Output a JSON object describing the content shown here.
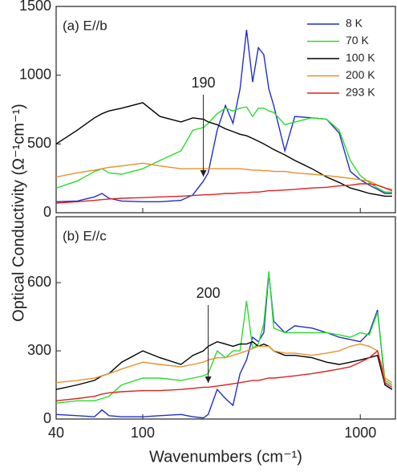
{
  "chart_data": [
    {
      "type": "line",
      "panel_label": "(a) E//b",
      "ylabel": "Optical Conductivity (Ω⁻¹cm⁻¹)",
      "log_x": true,
      "xlim": [
        40,
        1450
      ],
      "xticks": [
        100,
        1000
      ],
      "ylim": [
        0,
        1500
      ],
      "yticks": [
        0,
        500,
        1000,
        1500
      ],
      "annotations": [
        190
      ],
      "legend": "upper right",
      "x": [
        40,
        50,
        60,
        65,
        70,
        80,
        100,
        120,
        150,
        170,
        190,
        200,
        220,
        240,
        260,
        280,
        300,
        320,
        340,
        360,
        380,
        400,
        450,
        500,
        600,
        700,
        800,
        900,
        1000,
        1100,
        1200,
        1300,
        1400
      ],
      "series": [
        {
          "name": "8 K",
          "color": "#1f2fcc",
          "values": [
            80,
            85,
            115,
            140,
            105,
            85,
            80,
            80,
            90,
            130,
            230,
            290,
            600,
            780,
            650,
            900,
            1330,
            950,
            1200,
            1150,
            900,
            780,
            450,
            700,
            690,
            680,
            580,
            300,
            240,
            200,
            170,
            140,
            140
          ]
        },
        {
          "name": "70 K",
          "color": "#2bdc2b",
          "values": [
            180,
            230,
            300,
            320,
            290,
            280,
            320,
            380,
            450,
            600,
            620,
            650,
            720,
            760,
            740,
            760,
            770,
            700,
            760,
            760,
            740,
            730,
            640,
            660,
            690,
            680,
            600,
            380,
            270,
            220,
            180,
            150,
            150
          ]
        },
        {
          "name": "100 K",
          "color": "#000000",
          "values": [
            500,
            600,
            690,
            720,
            740,
            760,
            800,
            700,
            660,
            690,
            680,
            660,
            640,
            610,
            590,
            570,
            560,
            540,
            520,
            500,
            480,
            460,
            420,
            380,
            320,
            260,
            220,
            180,
            160,
            140,
            130,
            120,
            120
          ]
        },
        {
          "name": "200 K",
          "color": "#e8902a",
          "values": [
            260,
            290,
            310,
            320,
            330,
            340,
            360,
            340,
            320,
            320,
            320,
            320,
            320,
            320,
            320,
            320,
            315,
            310,
            310,
            305,
            305,
            300,
            300,
            290,
            280,
            270,
            260,
            250,
            240,
            230,
            200,
            180,
            170
          ]
        },
        {
          "name": "293 K",
          "color": "#dd2222",
          "values": [
            70,
            80,
            90,
            95,
            100,
            105,
            110,
            115,
            120,
            125,
            130,
            130,
            135,
            140,
            140,
            145,
            145,
            150,
            150,
            155,
            160,
            160,
            165,
            170,
            180,
            185,
            195,
            200,
            210,
            210,
            200,
            180,
            160
          ]
        }
      ]
    },
    {
      "type": "line",
      "panel_label": "(b) E//c",
      "xlabel": "Wavenumbers (cm⁻¹)",
      "log_x": true,
      "xlim": [
        40,
        1450
      ],
      "xticks": [
        40,
        100,
        1000
      ],
      "ylim": [
        0,
        890
      ],
      "yticks": [
        0,
        300,
        600
      ],
      "annotations": [
        200
      ],
      "x": [
        40,
        50,
        60,
        65,
        70,
        80,
        100,
        120,
        150,
        170,
        190,
        200,
        220,
        240,
        260,
        280,
        300,
        320,
        340,
        360,
        380,
        400,
        450,
        500,
        600,
        700,
        800,
        900,
        1000,
        1100,
        1200,
        1300,
        1400
      ],
      "series": [
        {
          "color": "#1f2fcc",
          "values": [
            20,
            15,
            10,
            40,
            15,
            10,
            10,
            15,
            20,
            10,
            5,
            20,
            130,
            90,
            60,
            200,
            260,
            360,
            340,
            380,
            640,
            430,
            380,
            410,
            400,
            380,
            360,
            350,
            340,
            380,
            480,
            150,
            130
          ]
        },
        {
          "color": "#2bdc2b",
          "values": [
            70,
            80,
            80,
            90,
            100,
            150,
            180,
            180,
            170,
            180,
            190,
            200,
            300,
            270,
            300,
            300,
            520,
            310,
            330,
            420,
            650,
            400,
            380,
            380,
            380,
            380,
            370,
            360,
            380,
            370,
            470,
            170,
            150
          ]
        },
        {
          "color": "#000000",
          "values": [
            130,
            150,
            170,
            190,
            200,
            250,
            300,
            270,
            240,
            280,
            300,
            320,
            340,
            330,
            320,
            330,
            330,
            340,
            320,
            330,
            320,
            300,
            280,
            280,
            270,
            250,
            240,
            250,
            260,
            270,
            280,
            150,
            130
          ]
        },
        {
          "color": "#e8902a",
          "values": [
            160,
            170,
            180,
            190,
            200,
            220,
            250,
            240,
            230,
            240,
            250,
            260,
            270,
            270,
            280,
            290,
            300,
            310,
            320,
            320,
            320,
            300,
            290,
            290,
            280,
            290,
            300,
            320,
            330,
            320,
            300,
            180,
            160
          ]
        },
        {
          "color": "#dd2222",
          "values": [
            80,
            90,
            100,
            110,
            115,
            120,
            125,
            125,
            130,
            135,
            140,
            140,
            145,
            150,
            155,
            160,
            165,
            170,
            170,
            175,
            180,
            180,
            185,
            190,
            200,
            210,
            220,
            230,
            250,
            270,
            300,
            160,
            140
          ]
        }
      ]
    }
  ]
}
